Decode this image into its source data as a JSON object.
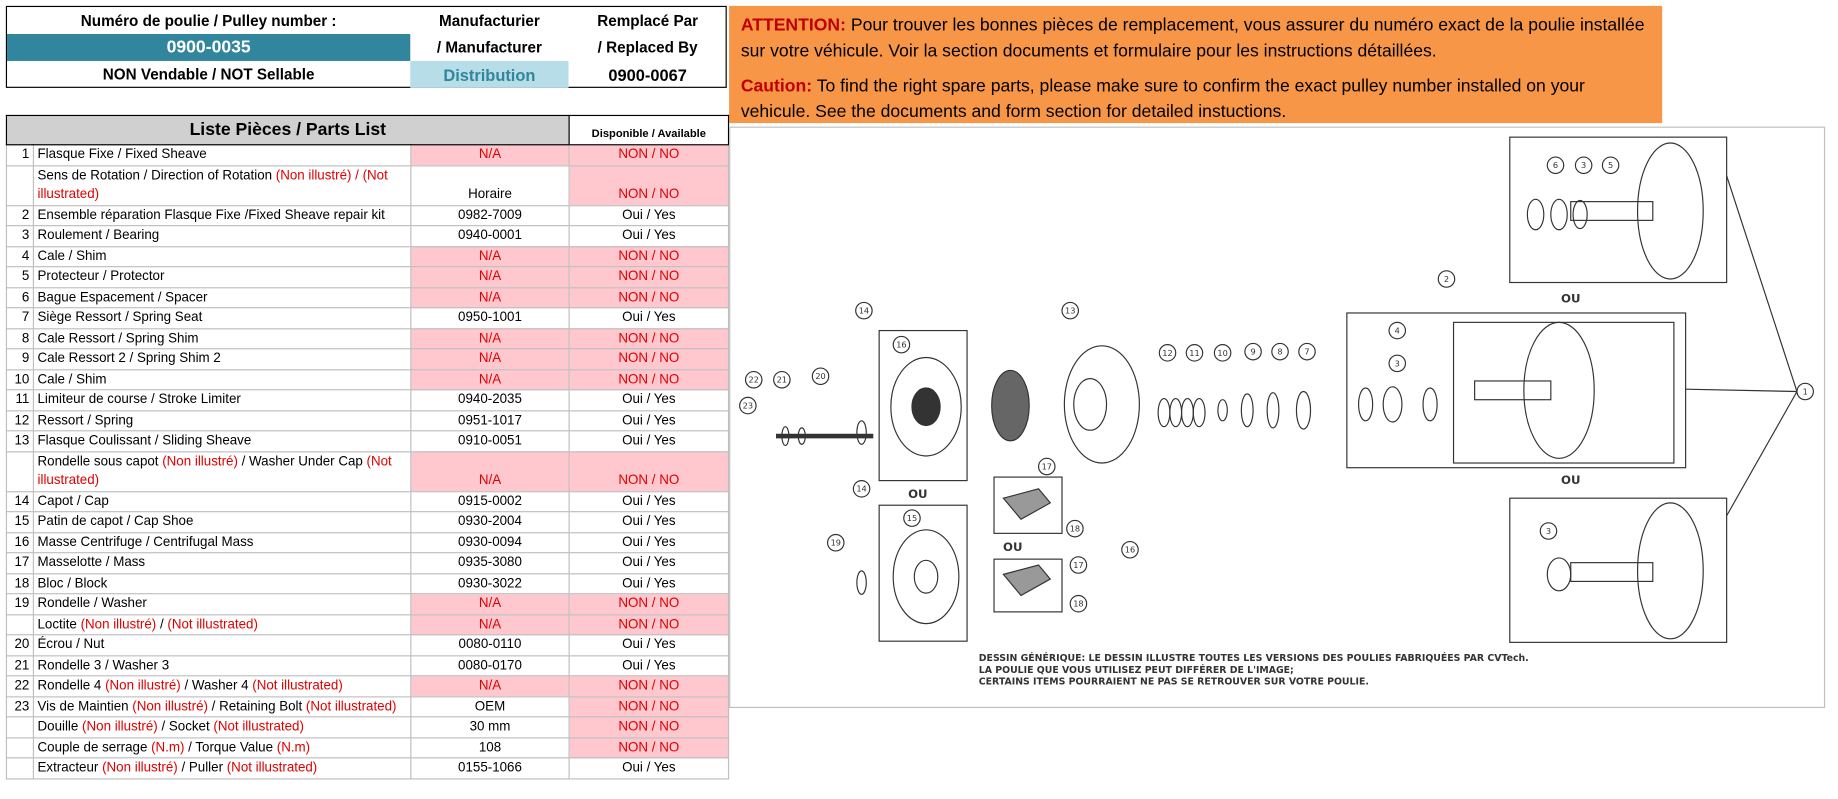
{
  "header": {
    "pulley_label": "Numéro de poulie / Pulley number :",
    "pulley_number": "0900-0035",
    "sellable": "NON Vendable / NOT Sellable",
    "manufacturer_label_1": "Manufacturier",
    "manufacturer_label_2": "/ Manufacturer",
    "manufacturer": "Distribution",
    "replaced_label_1": "Remplacé Par",
    "replaced_label_2": "/ Replaced By",
    "replaced_by": "0900-0067"
  },
  "notice": {
    "fr_tag": "ATTENTION:",
    "fr_text": "Pour trouver les bonnes pièces de remplacement, vous assurer du numéro exact de la poulie installée sur votre véhicule. Voir la section documents et formulaire pour les instructions détaillées.",
    "en_tag": "Caution:",
    "en_text": "To find the right spare parts, please make sure to confirm the exact pulley number installed on your vehicule. See the documents and form section for detailed instuctions."
  },
  "table": {
    "title": "Liste Pièces / Parts List",
    "availability_header": "Disponible / Available",
    "rows": [
      {
        "no": 1,
        "description": [
          {
            "text": "Flasque Fixe / Fixed Sheave"
          }
        ],
        "part": "N/A",
        "availability": "NON / NO",
        "part_flag": true,
        "avail_flag": true
      },
      {
        "no": null,
        "description": [
          {
            "text": "Sens de Rotation / Direction of Rotation "
          },
          {
            "text": "(Non illustré) / (Not illustrated)",
            "note": true
          }
        ],
        "part": "Horaire",
        "availability": "NON / NO",
        "part_flag": false,
        "avail_flag": true
      },
      {
        "no": 2,
        "description": [
          {
            "text": "Ensemble réparation Flasque Fixe /Fixed Sheave repair kit"
          }
        ],
        "part": "0982-7009",
        "availability": "Oui / Yes",
        "part_flag": false,
        "avail_flag": false
      },
      {
        "no": 3,
        "description": [
          {
            "text": "Roulement / Bearing"
          }
        ],
        "part": "0940-0001",
        "availability": "Oui / Yes",
        "part_flag": false,
        "avail_flag": false
      },
      {
        "no": 4,
        "description": [
          {
            "text": "Cale / Shim"
          }
        ],
        "part": "N/A",
        "availability": "NON / NO",
        "part_flag": true,
        "avail_flag": true
      },
      {
        "no": 5,
        "description": [
          {
            "text": "Protecteur / Protector"
          }
        ],
        "part": "N/A",
        "availability": "NON / NO",
        "part_flag": true,
        "avail_flag": true
      },
      {
        "no": 6,
        "description": [
          {
            "text": "Bague Espacement / Spacer"
          }
        ],
        "part": "N/A",
        "availability": "NON / NO",
        "part_flag": true,
        "avail_flag": true
      },
      {
        "no": 7,
        "description": [
          {
            "text": "Siège Ressort / Spring Seat"
          }
        ],
        "part": "0950-1001",
        "availability": "Oui / Yes",
        "part_flag": false,
        "avail_flag": false
      },
      {
        "no": 8,
        "description": [
          {
            "text": "Cale Ressort / Spring Shim"
          }
        ],
        "part": "N/A",
        "availability": "NON / NO",
        "part_flag": true,
        "avail_flag": true
      },
      {
        "no": 9,
        "description": [
          {
            "text": "Cale Ressort 2 / Spring Shim 2"
          }
        ],
        "part": "N/A",
        "availability": "NON / NO",
        "part_flag": true,
        "avail_flag": true
      },
      {
        "no": 10,
        "description": [
          {
            "text": "Cale / Shim"
          }
        ],
        "part": "N/A",
        "availability": "NON / NO",
        "part_flag": true,
        "avail_flag": true
      },
      {
        "no": 11,
        "description": [
          {
            "text": "Limiteur de course / Stroke Limiter"
          }
        ],
        "part": "0940-2035",
        "availability": "Oui / Yes",
        "part_flag": false,
        "avail_flag": false
      },
      {
        "no": 12,
        "description": [
          {
            "text": "Ressort / Spring"
          }
        ],
        "part": "0951-1017",
        "availability": "Oui / Yes",
        "part_flag": false,
        "avail_flag": false
      },
      {
        "no": 13,
        "description": [
          {
            "text": "Flasque Coulissant / Sliding Sheave"
          }
        ],
        "part": "0910-0051",
        "availability": "Oui / Yes",
        "part_flag": false,
        "avail_flag": false
      },
      {
        "no": null,
        "description": [
          {
            "text": "Rondelle sous capot "
          },
          {
            "text": "(Non illustré)",
            "note": true
          },
          {
            "text": " / Washer Under Cap "
          },
          {
            "text": "(Not illustrated)",
            "note": true
          }
        ],
        "part": "N/A",
        "availability": "NON / NO",
        "part_flag": true,
        "avail_flag": true
      },
      {
        "no": 14,
        "description": [
          {
            "text": "Capot / Cap"
          }
        ],
        "part": "0915-0002",
        "availability": "Oui / Yes",
        "part_flag": false,
        "avail_flag": false
      },
      {
        "no": 15,
        "description": [
          {
            "text": "Patin de capot / Cap Shoe"
          }
        ],
        "part": "0930-2004",
        "availability": "Oui / Yes",
        "part_flag": false,
        "avail_flag": false
      },
      {
        "no": 16,
        "description": [
          {
            "text": "Masse Centrifuge / Centrifugal Mass"
          }
        ],
        "part": "0930-0094",
        "availability": "Oui / Yes",
        "part_flag": false,
        "avail_flag": false
      },
      {
        "no": 17,
        "description": [
          {
            "text": "Masselotte / Mass"
          }
        ],
        "part": "0935-3080",
        "availability": "Oui / Yes",
        "part_flag": false,
        "avail_flag": false
      },
      {
        "no": 18,
        "description": [
          {
            "text": "Bloc / Block"
          }
        ],
        "part": "0930-3022",
        "availability": "Oui / Yes",
        "part_flag": false,
        "avail_flag": false
      },
      {
        "no": 19,
        "description": [
          {
            "text": "Rondelle / Washer"
          }
        ],
        "part": "N/A",
        "availability": "NON / NO",
        "part_flag": true,
        "avail_flag": true
      },
      {
        "no": null,
        "description": [
          {
            "text": "Loctite "
          },
          {
            "text": "(Non illustré)",
            "note": true
          },
          {
            "text": " / "
          },
          {
            "text": "(Not illustrated)",
            "note": true
          }
        ],
        "part": "N/A",
        "availability": "NON / NO",
        "part_flag": true,
        "avail_flag": true
      },
      {
        "no": 20,
        "description": [
          {
            "text": "Écrou / Nut"
          }
        ],
        "part": "0080-0110",
        "availability": "Oui / Yes",
        "part_flag": false,
        "avail_flag": false
      },
      {
        "no": 21,
        "description": [
          {
            "text": "Rondelle 3 / Washer 3"
          }
        ],
        "part": "0080-0170",
        "availability": "Oui / Yes",
        "part_flag": false,
        "avail_flag": false
      },
      {
        "no": 22,
        "description": [
          {
            "text": "Rondelle 4 "
          },
          {
            "text": "(Non illustré)",
            "note": true
          },
          {
            "text": " / Washer 4 "
          },
          {
            "text": "(Not illustrated)",
            "note": true
          }
        ],
        "part": "N/A",
        "availability": "NON / NO",
        "part_flag": true,
        "avail_flag": true
      },
      {
        "no": 23,
        "description": [
          {
            "text": "Vis de Maintien "
          },
          {
            "text": "(Non illustré)",
            "note": true
          },
          {
            "text": " / Retaining Bolt "
          },
          {
            "text": "(Not illustrated)",
            "note": true
          }
        ],
        "part": "OEM",
        "availability": "NON / NO",
        "part_flag": false,
        "avail_flag": true
      },
      {
        "no": null,
        "description": [
          {
            "text": "Douille "
          },
          {
            "text": "(Non illustré)",
            "note": true
          },
          {
            "text": " / Socket "
          },
          {
            "text": "(Not illustrated)",
            "note": true
          }
        ],
        "part": "30 mm",
        "availability": "NON / NO",
        "part_flag": false,
        "avail_flag": true
      },
      {
        "no": null,
        "description": [
          {
            "text": "Couple de serrage "
          },
          {
            "text": "(N.m)",
            "note": true
          },
          {
            "text": " / Torque Value "
          },
          {
            "text": "(N.m)",
            "note": true
          }
        ],
        "part": "108",
        "availability": "NON / NO",
        "part_flag": false,
        "avail_flag": true
      },
      {
        "no": null,
        "description": [
          {
            "text": "Extracteur "
          },
          {
            "text": "(Non illustré)",
            "note": true
          },
          {
            "text": " / Puller "
          },
          {
            "text": "(Not illustrated)",
            "note": true
          }
        ],
        "part": "0155-1066",
        "availability": "Oui / Yes",
        "part_flag": false,
        "avail_flag": false
      }
    ]
  },
  "diagram": {
    "or_label": "OU",
    "callouts": [
      6,
      3,
      5,
      2,
      14,
      13,
      16,
      12,
      11,
      10,
      9,
      8,
      7,
      4,
      3,
      1,
      22,
      21,
      20,
      23,
      17,
      14,
      15,
      18,
      19,
      16,
      17,
      18,
      3
    ],
    "caption": [
      "DESSIN GÉNÉRIQUE: LE DESSIN ILLUSTRE TOUTES LES VERSIONS DES POULIES FABRIQUÉES PAR CVTech.",
      "LA POULIE QUE VOUS UTILISEZ PEUT DIFFÉRER DE L'IMAGE;",
      "CERTAINS ITEMS POURRAIENT NE PAS SE RETROUVER SUR VOTRE POULIE."
    ]
  }
}
